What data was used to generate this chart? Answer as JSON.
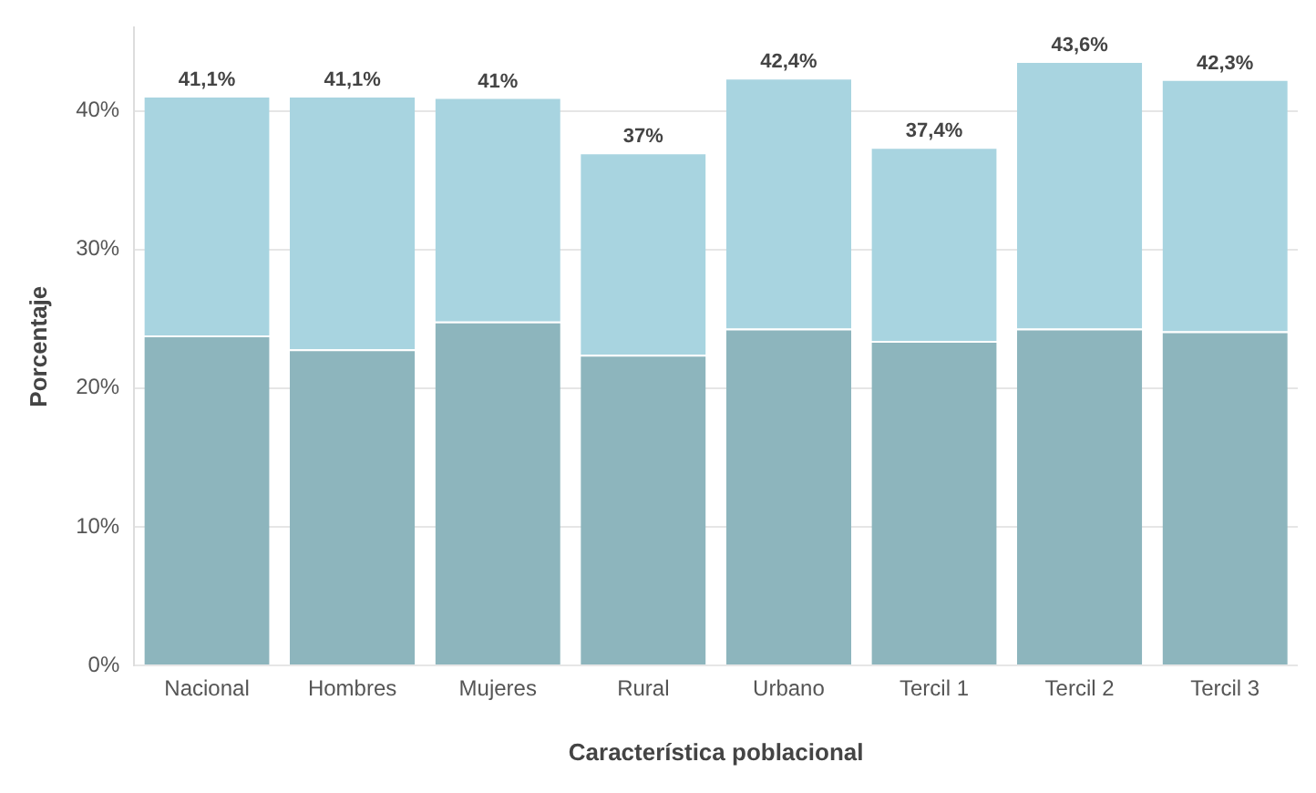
{
  "chart_data": {
    "type": "bar",
    "stacked": true,
    "xlabel": "Característica poblacional",
    "ylabel": "Porcentaje",
    "categories": [
      "Nacional",
      "Hombres",
      "Mujeres",
      "Rural",
      "Urbano",
      "Tercil 1",
      "Tercil 2",
      "Tercil 3"
    ],
    "series": [
      {
        "color": "#8db5bd",
        "values": [
          23.8,
          22.8,
          24.8,
          22.4,
          24.3,
          23.4,
          24.3,
          24.1
        ]
      },
      {
        "color": "#a8d4e0",
        "values": [
          17.3,
          18.3,
          16.2,
          14.6,
          18.1,
          14.0,
          19.3,
          18.2
        ]
      }
    ],
    "totals": [
      "41,1%",
      "41,1%",
      "41%",
      "37%",
      "42,4%",
      "37,4%",
      "43,6%",
      "42,3%"
    ],
    "ylim": [
      0,
      46
    ],
    "yticks": [
      {
        "value": 0,
        "label": "0%"
      },
      {
        "value": 10,
        "label": "10%"
      },
      {
        "value": 20,
        "label": "20%"
      },
      {
        "value": 30,
        "label": "30%"
      },
      {
        "value": 40,
        "label": "40%"
      }
    ],
    "grid": "y",
    "legend": false
  }
}
